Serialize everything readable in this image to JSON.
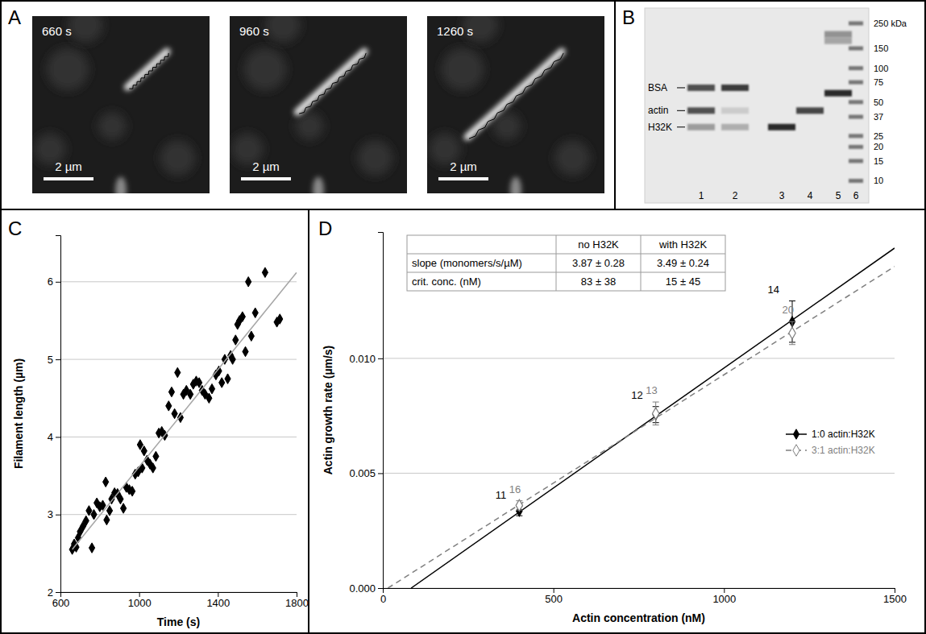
{
  "panel_a": {
    "letter": "A",
    "frames": [
      {
        "time": "660 s",
        "scale_bar": "2 µm"
      },
      {
        "time": "960 s",
        "scale_bar": "2 µm"
      },
      {
        "time": "1260 s",
        "scale_bar": "2 µm"
      }
    ]
  },
  "panel_b": {
    "letter": "B",
    "ylim": [
      8,
      320
    ],
    "band_labels": [
      {
        "label": "BSA",
        "kda": 67
      },
      {
        "label": "actin",
        "kda": 42
      },
      {
        "label": "H32K",
        "kda": 30
      }
    ],
    "lanes": [
      {
        "label": "1",
        "bands": [
          67,
          42,
          30
        ],
        "intensities": [
          0.8,
          0.8,
          0.4
        ]
      },
      {
        "label": "2",
        "bands": [
          67,
          42,
          30
        ],
        "intensities": [
          0.9,
          0.15,
          0.3
        ]
      },
      {
        "label": "3",
        "bands": [
          30
        ],
        "intensities": [
          1
        ]
      },
      {
        "label": "4",
        "bands": [
          42
        ],
        "intensities": [
          0.85
        ]
      },
      {
        "label": "5",
        "bands": [
          60,
          200,
          175
        ],
        "intensities": [
          1,
          0.45,
          0.35
        ]
      }
    ],
    "ladder_lane": "6",
    "ladder": [
      {
        "value": 250,
        "label": "250 kDa"
      },
      150,
      100,
      75,
      50,
      37,
      25,
      20,
      15,
      10
    ]
  },
  "chart_data": [
    {
      "panel": "C",
      "type": "scatter",
      "x_label": "Time (s)",
      "y_label": "Filament length (µm)",
      "xlim": [
        600,
        1800
      ],
      "ylim": [
        2,
        6.6
      ],
      "xticks": [
        600,
        1000,
        1400,
        1800
      ],
      "yticks": [
        2,
        3,
        4,
        5,
        6
      ],
      "grid": true,
      "series": [
        {
          "color": "#000000",
          "marker": "diamond",
          "x": [
            660,
            670,
            680,
            690,
            700,
            715,
            730,
            745,
            760,
            770,
            785,
            800,
            815,
            830,
            835,
            850,
            860,
            875,
            890,
            905,
            920,
            935,
            950,
            965,
            980,
            995,
            1005,
            1015,
            1025,
            1040,
            1055,
            1070,
            1085,
            1100,
            1115,
            1130,
            1150,
            1165,
            1180,
            1195,
            1210,
            1225,
            1240,
            1260,
            1275,
            1290,
            1305,
            1320,
            1335,
            1355,
            1370,
            1390,
            1405,
            1420,
            1435,
            1450,
            1465,
            1475,
            1490,
            1500,
            1510,
            1525,
            1540,
            1555,
            1570,
            1590,
            1640,
            1700,
            1715
          ],
          "values": [
            2.55,
            2.62,
            2.58,
            2.7,
            2.78,
            2.85,
            2.92,
            3.05,
            2.57,
            3.0,
            3.15,
            3.1,
            3.12,
            3.42,
            2.93,
            3.05,
            3.2,
            3.28,
            3.27,
            3.2,
            3.08,
            3.35,
            3.32,
            3.3,
            3.52,
            3.55,
            3.9,
            3.6,
            3.82,
            3.7,
            3.65,
            3.6,
            3.75,
            4.05,
            4.07,
            4.02,
            4.4,
            4.58,
            4.3,
            4.83,
            4.25,
            4.55,
            4.6,
            4.55,
            4.68,
            4.72,
            4.7,
            4.6,
            4.55,
            4.5,
            4.62,
            4.8,
            4.85,
            4.7,
            5.0,
            4.75,
            5.05,
            5.0,
            5.25,
            5.45,
            5.5,
            5.55,
            5.1,
            6.0,
            5.3,
            5.6,
            6.12,
            5.48,
            5.52
          ]
        },
        {
          "type": "line",
          "color": "#a6a6a6",
          "line_style": "solid",
          "x": [
            660,
            1800
          ],
          "values": [
            2.55,
            6.12
          ]
        }
      ]
    },
    {
      "panel": "D",
      "type": "line",
      "x_label": "Actin concentration (nM)",
      "y_label": "Actin growth rate (µm/s)",
      "xlim": [
        0,
        1500
      ],
      "ylim": [
        0,
        0.0155
      ],
      "xticks": [
        0,
        500,
        1000,
        1500
      ],
      "yticks": [
        {
          "value": 0,
          "label": "0.000"
        },
        {
          "value": 0.005,
          "label": "0.005"
        },
        {
          "value": 0.01,
          "label": "0.010"
        }
      ],
      "grid": true,
      "legend": "right",
      "table": {
        "columns": [
          "no H32K",
          "with H32K"
        ],
        "rows": [
          {
            "label": "slope (monomers/s/µM)",
            "values": [
              "3.87 ± 0.28",
              "3.49 ± 0.24"
            ]
          },
          {
            "label": "crit. conc. (nM)",
            "values": [
              "83 ± 38",
              "15 ± 45"
            ]
          }
        ]
      },
      "series": [
        {
          "name": "1:0 actin:H32K",
          "color": "#000000",
          "marker": "diamond",
          "line_style": "solid",
          "x": [
            400,
            800,
            1200
          ],
          "values": [
            0.00335,
            0.00755,
            0.0116
          ],
          "errors": [
            0.0002,
            0.00035,
            0.0009
          ],
          "counts": [
            11,
            12,
            14
          ],
          "fit": {
            "x": [
              83,
              1500
            ],
            "values": [
              0,
              0.0148
            ]
          }
        },
        {
          "name": "3:1 actin:H32K",
          "color": "#7f7f7f",
          "marker": "open-diamond",
          "line_style": "dashed",
          "x": [
            400,
            800,
            1200
          ],
          "values": [
            0.0036,
            0.0076,
            0.0111
          ],
          "errors": [
            0.0002,
            0.0005,
            0.0005
          ],
          "counts": [
            16,
            13,
            20
          ],
          "fit": {
            "x": [
              15,
              1500
            ],
            "values": [
              0,
              0.014
            ]
          }
        }
      ]
    }
  ]
}
